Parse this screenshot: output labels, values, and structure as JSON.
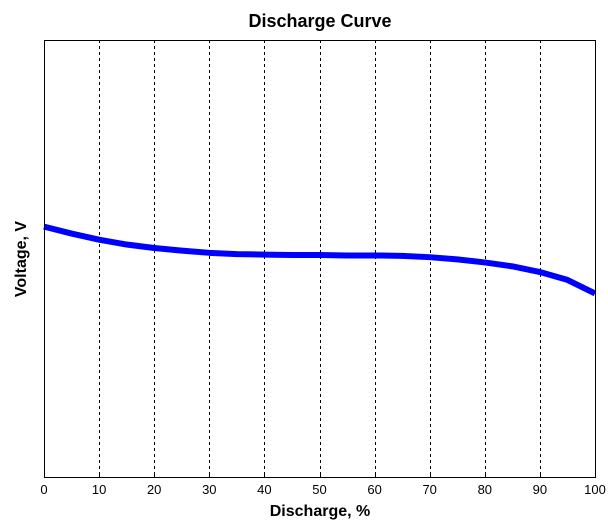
{
  "chart_data": {
    "type": "line",
    "title": "Discharge Curve",
    "xlabel": "Discharge, %",
    "ylabel": "Voltage, V",
    "xlim": [
      0,
      100
    ],
    "xticks": [
      0,
      10,
      20,
      30,
      40,
      50,
      60,
      70,
      80,
      90,
      100
    ],
    "ylim": [
      0,
      100
    ],
    "y_tick_labels_shown": false,
    "grid": "vertical dashed",
    "series": [
      {
        "color": "#0000ff",
        "x": [
          0,
          5,
          10,
          15,
          20,
          25,
          30,
          35,
          40,
          45,
          50,
          55,
          60,
          65,
          70,
          75,
          80,
          85,
          90,
          95,
          100
        ],
        "y": [
          57.3,
          55.7,
          54.3,
          53.2,
          52.4,
          51.8,
          51.3,
          51.0,
          50.9,
          50.8,
          50.8,
          50.7,
          50.7,
          50.6,
          50.3,
          49.8,
          49.1,
          48.2,
          46.9,
          45.1,
          42.0
        ]
      }
    ]
  }
}
